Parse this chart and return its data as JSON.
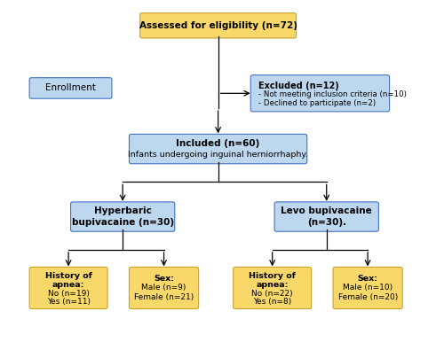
{
  "bg_color": "#ffffff",
  "box_yellow_fill": "#F9D86A",
  "box_blue_fill": "#BDD7EE",
  "box_blue_edge": "#4472C4",
  "box_yellow_edge": "#C9A227",
  "title": "Assessed for eligibility (n=72)",
  "enrollment": "Enrollment",
  "excluded_title": "Excluded (n=12)",
  "excluded_line1": "- Not meeting inclusion criteria (n=10)",
  "excluded_line2": "- Declined to participate (n=2)",
  "included_line1": "Included (n=60)",
  "included_line2": "Infants undergoing inguinal herniorrhaphy.",
  "hyper_line1": "Hyperbaric",
  "hyper_line2": "bupivacaine (n=30)",
  "levo_line1": "Levo bupivacaine",
  "levo_line2": "(n=30).",
  "hist1_line1": "History of",
  "hist1_line2": "apnea:",
  "hist1_line3": "No (n=19)",
  "hist1_line4": "Yes (n=11)",
  "sex1_line1": "Sex:",
  "sex1_line2": "Male (n=9)",
  "sex1_line3": "Female (n=21)",
  "hist2_line1": "History of",
  "hist2_line2": "apnea:",
  "hist2_line3": "No (n=22)",
  "hist2_line4": "Yes (n=8)",
  "sex2_line1": "Sex:",
  "sex2_line2": "Male (n=10)",
  "sex2_line3": "Female (n=20)"
}
